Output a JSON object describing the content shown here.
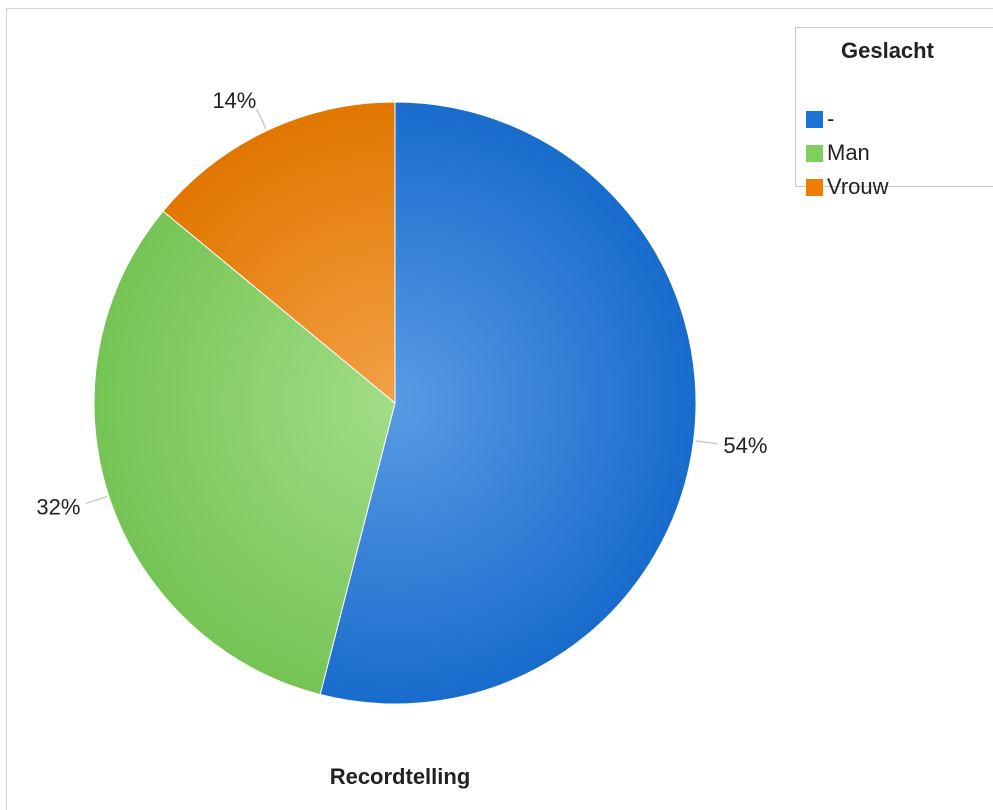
{
  "chart_data": {
    "type": "pie",
    "title": "Recordtelling",
    "legend_title": "Geslacht",
    "legend_position": "top-right",
    "slices": [
      {
        "name": "-",
        "value": 54,
        "label": "54%",
        "color": "#1a73d9"
      },
      {
        "name": "Man",
        "value": 32,
        "label": "32%",
        "color": "#7ed05a"
      },
      {
        "name": "Vrouw",
        "value": 14,
        "label": "14%",
        "color": "#ef7d00"
      }
    ]
  },
  "colors": {
    "text": "#222222",
    "leader_line": "#cccccc",
    "border": "#c8c8c8"
  }
}
